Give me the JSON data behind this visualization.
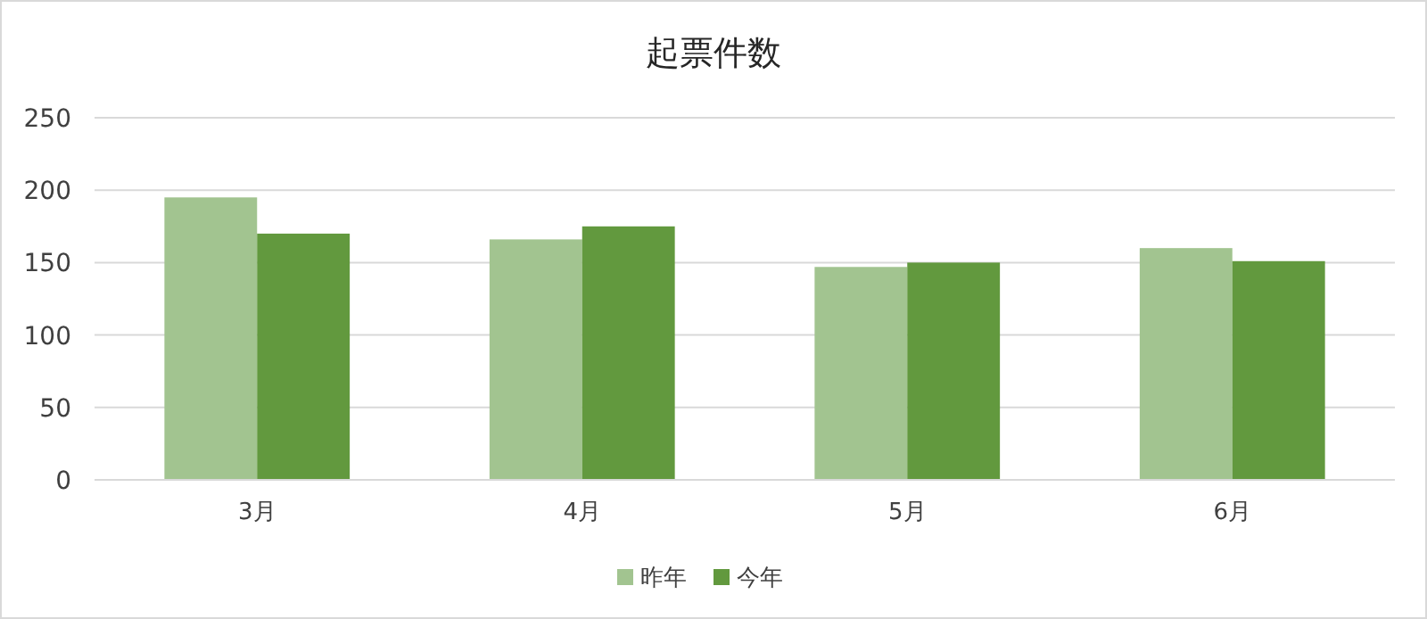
{
  "chart_data": {
    "type": "bar",
    "title": "起票件数",
    "categories": [
      "3月",
      "4月",
      "5月",
      "6月"
    ],
    "series": [
      {
        "name": "昨年",
        "color": "#a2c490",
        "values": [
          195,
          166,
          147,
          160
        ]
      },
      {
        "name": "今年",
        "color": "#62993e",
        "values": [
          170,
          175,
          150,
          151
        ]
      }
    ],
    "ylim": [
      0,
      250
    ],
    "yticks": [
      0,
      50,
      100,
      150,
      200,
      250
    ],
    "grid": "y",
    "legend": "bottom"
  }
}
